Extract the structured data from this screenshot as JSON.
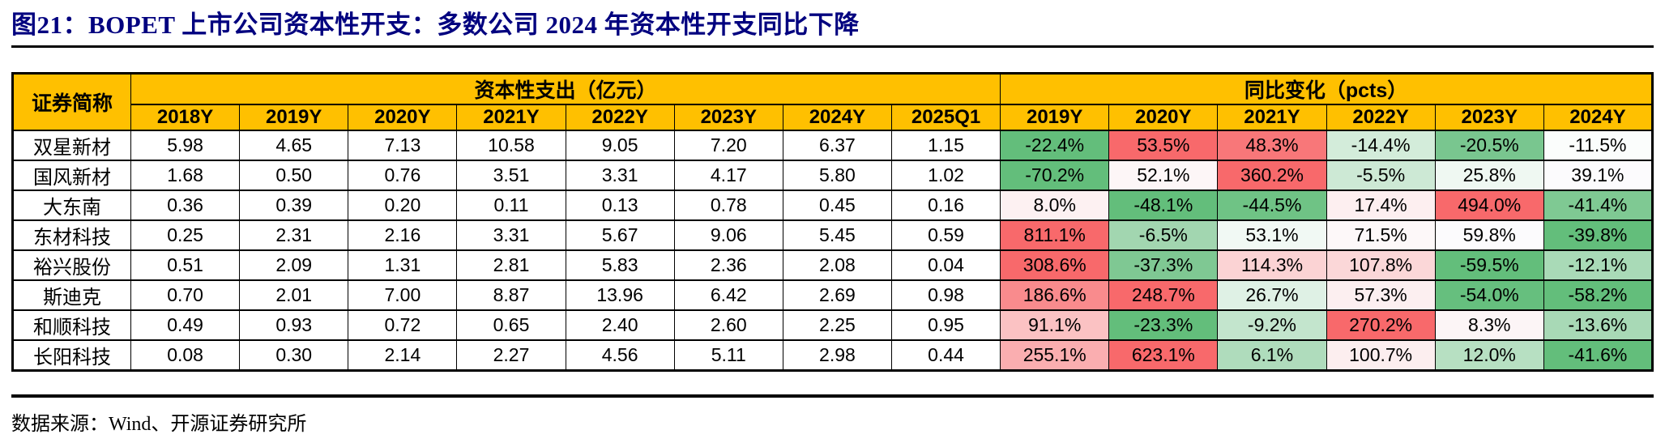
{
  "title": "图21：BOPET 上市公司资本性开支：多数公司 2024 年资本性开支同比下降",
  "source_note": "数据来源：Wind、开源证券研究所",
  "colors": {
    "title_text": "#00007F",
    "header_bg": "#FFC000",
    "heat_max_red": "#F8696B",
    "heat_mid_white": "#FCFCFF",
    "heat_min_green": "#63BE7B",
    "rule_black": "#000000"
  },
  "chart_data": {
    "type": "table",
    "name_header": "证券简称",
    "groups": [
      {
        "label": "资本性支出（亿元）",
        "span": 8
      },
      {
        "label": "同比变化（pcts）",
        "span": 6
      }
    ],
    "capex_columns": [
      "2018Y",
      "2019Y",
      "2020Y",
      "2021Y",
      "2022Y",
      "2023Y",
      "2024Y",
      "2025Q1"
    ],
    "yoy_columns": [
      "2019Y",
      "2020Y",
      "2021Y",
      "2022Y",
      "2023Y",
      "2024Y"
    ],
    "rows": [
      {
        "name": "双星新材",
        "capex": [
          "5.98",
          "4.65",
          "7.13",
          "10.58",
          "9.05",
          "7.20",
          "6.37",
          "1.15"
        ],
        "yoy": [
          {
            "label": "-22.4%",
            "bg": "#63BE7B"
          },
          {
            "label": "53.5%",
            "bg": "#F8696B"
          },
          {
            "label": "48.3%",
            "bg": "#F87779"
          },
          {
            "label": "-14.4%",
            "bg": "#D3ECDA"
          },
          {
            "label": "-20.5%",
            "bg": "#79C68F"
          },
          {
            "label": "-11.5%",
            "bg": "#FBFDFC"
          }
        ]
      },
      {
        "name": "国风新材",
        "capex": [
          "1.68",
          "0.50",
          "0.76",
          "3.51",
          "3.31",
          "4.17",
          "5.80",
          "1.02"
        ],
        "yoy": [
          {
            "label": "-70.2%",
            "bg": "#63BE7B"
          },
          {
            "label": "52.1%",
            "bg": "#FDF6F7"
          },
          {
            "label": "360.2%",
            "bg": "#F8696B"
          },
          {
            "label": "-5.5%",
            "bg": "#CDE9D5"
          },
          {
            "label": "25.8%",
            "bg": "#EFF8F2"
          },
          {
            "label": "39.1%",
            "bg": "#FCFBFD"
          }
        ]
      },
      {
        "name": "大东南",
        "capex": [
          "0.36",
          "0.39",
          "0.20",
          "0.11",
          "0.13",
          "0.78",
          "0.45",
          "0.16"
        ],
        "yoy": [
          {
            "label": "8.0%",
            "bg": "#FDF1F2"
          },
          {
            "label": "-48.1%",
            "bg": "#63BE7B"
          },
          {
            "label": "-44.5%",
            "bg": "#6FC385"
          },
          {
            "label": "17.4%",
            "bg": "#FDEFF0"
          },
          {
            "label": "494.0%",
            "bg": "#F8696B"
          },
          {
            "label": "-41.4%",
            "bg": "#7FC993"
          }
        ]
      },
      {
        "name": "东材科技",
        "capex": [
          "0.25",
          "2.31",
          "2.16",
          "3.31",
          "5.67",
          "9.06",
          "5.45",
          "0.59"
        ],
        "yoy": [
          {
            "label": "811.1%",
            "bg": "#F8696B"
          },
          {
            "label": "-6.5%",
            "bg": "#A2D6B0"
          },
          {
            "label": "53.1%",
            "bg": "#F1F9F4"
          },
          {
            "label": "71.5%",
            "bg": "#FDF8F9"
          },
          {
            "label": "59.8%",
            "bg": "#FCFBFD"
          },
          {
            "label": "-39.8%",
            "bg": "#63BE7B"
          }
        ]
      },
      {
        "name": "裕兴股份",
        "capex": [
          "0.51",
          "2.09",
          "1.31",
          "2.81",
          "5.83",
          "2.36",
          "2.08",
          "0.04"
        ],
        "yoy": [
          {
            "label": "308.6%",
            "bg": "#F8696B"
          },
          {
            "label": "-37.3%",
            "bg": "#7FC893"
          },
          {
            "label": "114.3%",
            "bg": "#FBD3D4"
          },
          {
            "label": "107.8%",
            "bg": "#FBD7D8"
          },
          {
            "label": "-59.5%",
            "bg": "#63BE7B"
          },
          {
            "label": "-12.1%",
            "bg": "#A9DAB7"
          }
        ]
      },
      {
        "name": "斯迪克",
        "capex": [
          "0.70",
          "2.01",
          "7.00",
          "8.87",
          "13.96",
          "6.42",
          "2.69",
          "0.98"
        ],
        "yoy": [
          {
            "label": "186.6%",
            "bg": "#F98B8D"
          },
          {
            "label": "248.7%",
            "bg": "#F8696B"
          },
          {
            "label": "26.7%",
            "bg": "#DFF1E5"
          },
          {
            "label": "57.3%",
            "bg": "#FCEFF0"
          },
          {
            "label": "-54.0%",
            "bg": "#66BF7E"
          },
          {
            "label": "-58.2%",
            "bg": "#63BE7B"
          }
        ]
      },
      {
        "name": "和顺科技",
        "capex": [
          "0.49",
          "0.93",
          "0.72",
          "0.65",
          "2.40",
          "2.60",
          "2.25",
          "0.95"
        ],
        "yoy": [
          {
            "label": "91.1%",
            "bg": "#FBC2C3"
          },
          {
            "label": "-23.3%",
            "bg": "#63BE7B"
          },
          {
            "label": "-9.2%",
            "bg": "#C3E5CD"
          },
          {
            "label": "270.2%",
            "bg": "#F8696B"
          },
          {
            "label": "8.3%",
            "bg": "#FCF5F6"
          },
          {
            "label": "-13.6%",
            "bg": "#A8D9B6"
          }
        ]
      },
      {
        "name": "长阳科技",
        "capex": [
          "0.08",
          "0.30",
          "2.14",
          "2.27",
          "4.56",
          "5.11",
          "2.98",
          "0.44"
        ],
        "yoy": [
          {
            "label": "255.1%",
            "bg": "#FAAEB0"
          },
          {
            "label": "623.1%",
            "bg": "#F8696B"
          },
          {
            "label": "6.1%",
            "bg": "#AFDCBC"
          },
          {
            "label": "100.7%",
            "bg": "#FCEEEF"
          },
          {
            "label": "12.0%",
            "bg": "#B7E0C2"
          },
          {
            "label": "-41.6%",
            "bg": "#63BE7B"
          }
        ]
      }
    ]
  }
}
